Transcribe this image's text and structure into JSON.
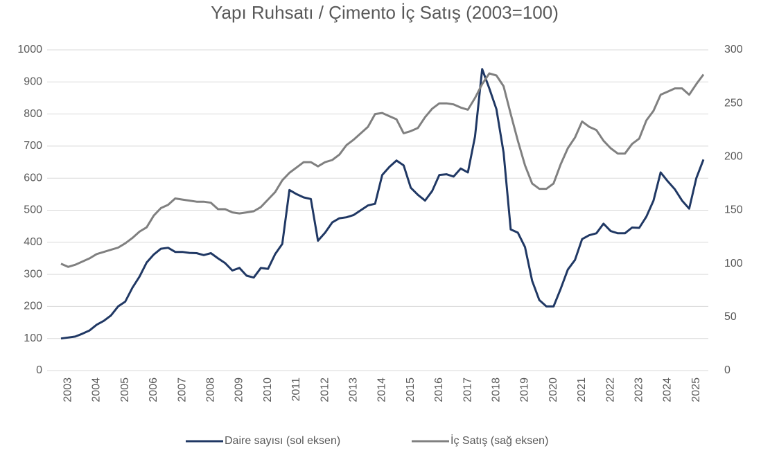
{
  "chart_data": {
    "type": "line",
    "title": "Yapı Ruhsatı / Çimento İç Satış (2003=100)",
    "categories": [
      null,
      "2003",
      null,
      null,
      null,
      "2004",
      null,
      null,
      null,
      "2005",
      null,
      null,
      null,
      "2006",
      null,
      null,
      null,
      "2007",
      null,
      null,
      null,
      "2008",
      null,
      null,
      null,
      "2009",
      null,
      null,
      null,
      "2010",
      null,
      null,
      null,
      "2011",
      null,
      null,
      null,
      "2012",
      null,
      null,
      null,
      "2013",
      null,
      null,
      null,
      "2014",
      null,
      null,
      null,
      "2015",
      null,
      null,
      null,
      "2016",
      null,
      null,
      null,
      "2017",
      null,
      null,
      null,
      "2018",
      null,
      null,
      null,
      "2019",
      null,
      null,
      null,
      "2020",
      null,
      null,
      null,
      "2021",
      null,
      null,
      null,
      "2022",
      null,
      null,
      null,
      "2023",
      null,
      null,
      null,
      "2024",
      null,
      null,
      null,
      "2025",
      null
    ],
    "series": [
      {
        "name": "Daire sayısı (sol eksen)",
        "color": "#203864",
        "axis": "y",
        "values": [
          100,
          103,
          106,
          115,
          125,
          143,
          155,
          172,
          200,
          215,
          258,
          293,
          337,
          362,
          380,
          383,
          370,
          370,
          367,
          366,
          360,
          366,
          350,
          335,
          312,
          320,
          296,
          290,
          320,
          317,
          363,
          395,
          563,
          550,
          540,
          535,
          405,
          430,
          462,
          475,
          478,
          485,
          500,
          515,
          520,
          610,
          635,
          655,
          640,
          570,
          548,
          530,
          560,
          610,
          612,
          605,
          630,
          618,
          730,
          940,
          880,
          815,
          680,
          440,
          430,
          385,
          280,
          220,
          200,
          200,
          255,
          315,
          345,
          410,
          422,
          428,
          458,
          435,
          428,
          428,
          446,
          445,
          480,
          530,
          618,
          590,
          565,
          530,
          505,
          600,
          658
        ]
      },
      {
        "name": "İç Satış (sağ eksen)",
        "color": "#808080",
        "axis": "y2",
        "values": [
          100,
          97,
          99,
          102,
          105,
          109,
          111,
          113,
          115,
          119,
          124,
          130,
          134,
          145,
          152,
          155,
          161,
          160,
          159,
          158,
          158,
          157,
          151,
          151,
          148,
          147,
          148,
          149,
          153,
          160,
          167,
          178,
          185,
          190,
          195,
          195,
          191,
          195,
          197,
          202,
          211,
          216,
          222,
          228,
          240,
          241,
          238,
          235,
          222,
          224,
          227,
          237,
          245,
          250,
          250,
          249,
          246,
          244,
          255,
          268,
          278,
          276,
          266,
          240,
          215,
          192,
          175,
          170,
          170,
          175,
          193,
          208,
          218,
          233,
          228,
          225,
          215,
          208,
          203,
          203,
          212,
          217,
          234,
          243,
          258,
          261,
          264,
          264,
          258,
          268,
          277
        ]
      }
    ],
    "ylim": [
      0,
      1000
    ],
    "yticks": [
      0,
      100,
      200,
      300,
      400,
      500,
      600,
      700,
      800,
      900,
      1000
    ],
    "y2lim": [
      0,
      300
    ],
    "y2ticks": [
      0,
      50,
      100,
      150,
      200,
      250,
      300
    ],
    "grid": true,
    "legend": "bottom"
  }
}
